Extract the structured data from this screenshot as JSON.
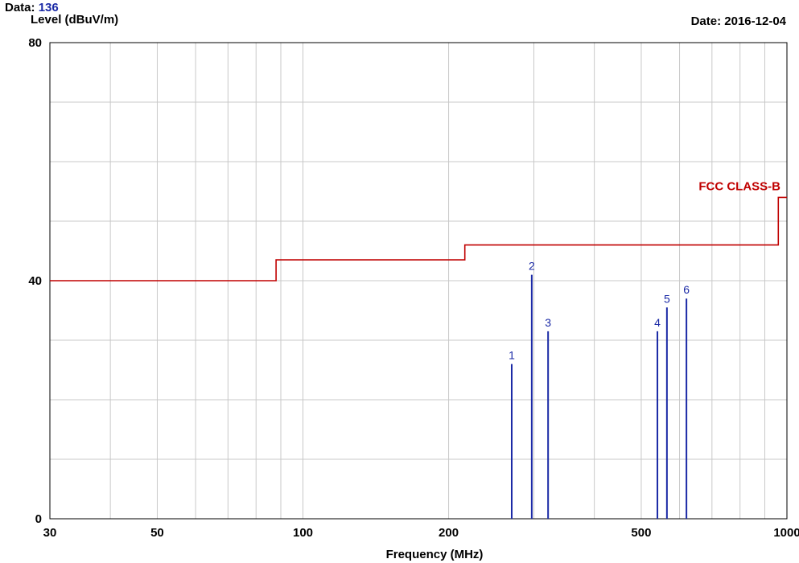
{
  "header": {
    "data_prefix": "Data:",
    "data_value": "136",
    "date_text": "Date: 2016-12-04"
  },
  "chart_data": {
    "type": "line",
    "xlabel": "Frequency (MHz)",
    "ylabel": "Level (dBuV/m)",
    "x_scale": "log",
    "xlim": [
      30,
      1000
    ],
    "ylim": [
      0,
      80
    ],
    "x_ticks": [
      30,
      50,
      100,
      200,
      500,
      1000
    ],
    "x_tick_labels": [
      "30",
      "50",
      "100",
      "200",
      "500",
      "1000"
    ],
    "x_minor_gridlines": [
      40,
      60,
      70,
      80,
      90,
      300,
      400,
      600,
      700,
      800,
      900
    ],
    "y_ticks": [
      0,
      40,
      80
    ],
    "y_tick_labels": [
      "0",
      "40",
      "80"
    ],
    "y_gridlines": [
      10,
      20,
      30,
      50,
      60,
      70
    ],
    "grid": true,
    "colors": {
      "grid": "#c8c8c8",
      "limit": "#c00000",
      "marker": "#1b2aa6",
      "axis": "#000000"
    },
    "limit_line": {
      "name": "FCC CLASS-B",
      "points": [
        [
          30,
          40
        ],
        [
          88,
          40
        ],
        [
          88,
          43.5
        ],
        [
          216,
          43.5
        ],
        [
          216,
          46
        ],
        [
          960,
          46
        ],
        [
          960,
          54
        ],
        [
          1000,
          54
        ]
      ]
    },
    "markers": [
      {
        "label": "1",
        "x": 270,
        "y": 26
      },
      {
        "label": "2",
        "x": 297,
        "y": 41
      },
      {
        "label": "3",
        "x": 321,
        "y": 31.5
      },
      {
        "label": "4",
        "x": 540,
        "y": 31.5
      },
      {
        "label": "5",
        "x": 565,
        "y": 35.5
      },
      {
        "label": "6",
        "x": 620,
        "y": 37
      }
    ]
  }
}
